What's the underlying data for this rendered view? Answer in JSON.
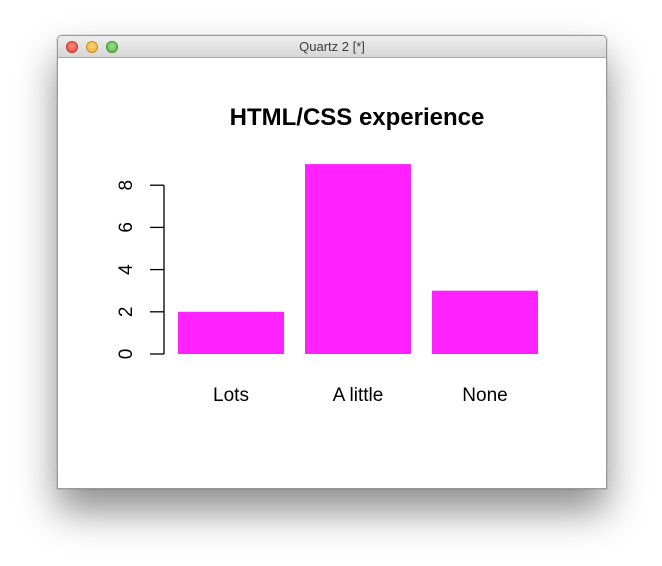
{
  "window": {
    "title": "Quartz 2 [*]"
  },
  "chart_data": {
    "type": "bar",
    "title": "HTML/CSS experience",
    "categories": [
      "Lots",
      "A little",
      "None"
    ],
    "values": [
      2,
      9,
      3
    ],
    "ylim": [
      0,
      8
    ],
    "yticks": [
      "0",
      "2",
      "4",
      "6",
      "8"
    ],
    "xlabel": "",
    "ylabel": "",
    "grid": false,
    "bar_color": "#ff22ff"
  }
}
